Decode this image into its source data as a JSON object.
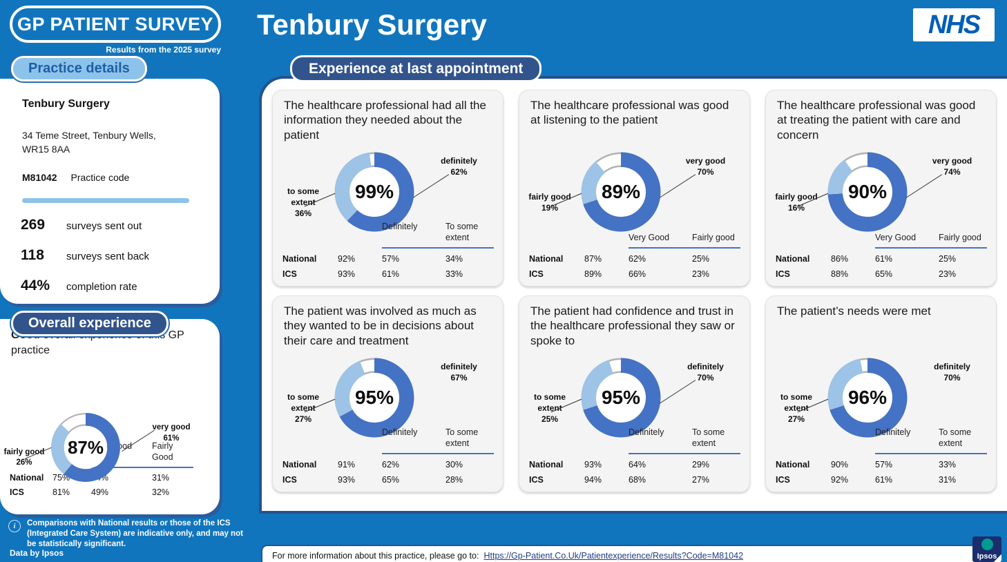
{
  "header": {
    "logo": "GP PATIENT SURVEY",
    "survey_note": "Results from the 2025 survey",
    "practice_title": "Tenbury Surgery",
    "nhs": "NHS",
    "section_pill": "Experience at last appointment"
  },
  "practice_details": {
    "pill": "Practice details",
    "name": "Tenbury Surgery",
    "address": "34 Teme Street, Tenbury Wells,\nWR15 8AA",
    "code": "M81042",
    "code_label": "Practice code",
    "stats": [
      {
        "value": "269",
        "label": "surveys sent out"
      },
      {
        "value": "118",
        "label": "surveys sent back"
      },
      {
        "value": "44%",
        "label": "completion rate"
      }
    ]
  },
  "overall": {
    "pill": "Overall experience",
    "heading_bold": "Good",
    "heading_rest": " overall experience of this GP practice"
  },
  "footer": {
    "note": "Comparisons with National results or those of the ICS (Integrated Care System) are indicative only, and may not be statistically significant.",
    "data_by": "Data by Ipsos",
    "info_text": "For more information about this practice, please go to:",
    "link": "Https://Gp-Patient.Co.Uk/Patientexperience/Results?Code=M81042",
    "ipsos": "Ipsos"
  },
  "colors": {
    "page_blue": "#1175BE",
    "navy": "#32548C",
    "panel_border_navy": "#24528E",
    "donut_dark": "#4472C4",
    "donut_light": "#9DC3E6",
    "donut_remainder_outline": "#B3B3B3",
    "table_line": "#4472C4",
    "nhs_blue": "#005EB8",
    "pill_light_bg": "#8DC3EA",
    "pill_light_text": "#1D5FA6"
  },
  "chart_data": [
    {
      "id": "overall-experience",
      "type": "donut",
      "title": "Good overall experience of this GP practice",
      "percent": 87,
      "percent_display": "87%",
      "segments": [
        {
          "label": "very good",
          "value": 61,
          "display": "61%"
        },
        {
          "label": "fairly good",
          "value": 26,
          "display": "26%"
        }
      ],
      "callout_lines": {
        "left": true,
        "right": true
      },
      "comparison": {
        "columns": [
          "Very Good",
          "Fairly Good"
        ],
        "rows": [
          {
            "label": "National",
            "overall": "75%",
            "values": [
              "44%",
              "31%"
            ]
          },
          {
            "label": "ICS",
            "overall": "81%",
            "values": [
              "49%",
              "32%"
            ]
          }
        ]
      }
    },
    {
      "id": "information-needed",
      "type": "donut",
      "title": "The healthcare professional had all the information they needed about the patient",
      "percent": 99,
      "percent_display": "99%",
      "segments": [
        {
          "label": "definitely",
          "value": 62,
          "display": "62%"
        },
        {
          "label": "to some extent",
          "value": 36,
          "display": "36%"
        }
      ],
      "callout_lines": {
        "left": true,
        "right": true
      },
      "comparison": {
        "columns": [
          "Definitely",
          "To some extent"
        ],
        "rows": [
          {
            "label": "National",
            "overall": "92%",
            "values": [
              "57%",
              "34%"
            ]
          },
          {
            "label": "ICS",
            "overall": "93%",
            "values": [
              "61%",
              "33%"
            ]
          }
        ]
      }
    },
    {
      "id": "good-at-listening",
      "type": "donut",
      "title": "The healthcare professional was good at listening to the patient",
      "percent": 89,
      "percent_display": "89%",
      "segments": [
        {
          "label": "very good",
          "value": 70,
          "display": "70%"
        },
        {
          "label": "fairly good",
          "value": 19,
          "display": "19%"
        }
      ],
      "callout_lines": {
        "left": true,
        "right": true
      },
      "comparison": {
        "columns": [
          "Very Good",
          "Fairly good"
        ],
        "rows": [
          {
            "label": "National",
            "overall": "87%",
            "values": [
              "62%",
              "25%"
            ]
          },
          {
            "label": "ICS",
            "overall": "89%",
            "values": [
              "66%",
              "23%"
            ]
          }
        ]
      }
    },
    {
      "id": "care-and-concern",
      "type": "donut",
      "title": "The healthcare professional was good at treating the patient with care and concern",
      "percent": 90,
      "percent_display": "90%",
      "segments": [
        {
          "label": "very good",
          "value": 74,
          "display": "74%"
        },
        {
          "label": "fairly good",
          "value": 16,
          "display": "16%"
        }
      ],
      "callout_lines": {
        "left": true,
        "right": true
      },
      "comparison": {
        "columns": [
          "Very Good",
          "Fairly good"
        ],
        "rows": [
          {
            "label": "National",
            "overall": "86%",
            "values": [
              "61%",
              "25%"
            ]
          },
          {
            "label": "ICS",
            "overall": "88%",
            "values": [
              "65%",
              "23%"
            ]
          }
        ]
      }
    },
    {
      "id": "involved-in-decisions",
      "type": "donut",
      "title": "The patient was involved as much as they wanted to be in decisions about their care and treatment",
      "percent": 95,
      "percent_display": "95%",
      "segments": [
        {
          "label": "definitely",
          "value": 67,
          "display": "67%"
        },
        {
          "label": "to some extent",
          "value": 27,
          "display": "27%"
        }
      ],
      "callout_lines": {
        "left": true,
        "right": false
      },
      "comparison": {
        "columns": [
          "Definitely",
          "To some extent"
        ],
        "rows": [
          {
            "label": "National",
            "overall": "91%",
            "values": [
              "62%",
              "30%"
            ]
          },
          {
            "label": "ICS",
            "overall": "93%",
            "values": [
              "65%",
              "28%"
            ]
          }
        ]
      }
    },
    {
      "id": "confidence-and-trust",
      "type": "donut",
      "title": "The patient had confidence and trust in the healthcare professional they saw or spoke to",
      "percent": 95,
      "percent_display": "95%",
      "segments": [
        {
          "label": "definitely",
          "value": 70,
          "display": "70%"
        },
        {
          "label": "to some extent",
          "value": 25,
          "display": "25%"
        }
      ],
      "callout_lines": {
        "left": true,
        "right": true
      },
      "comparison": {
        "columns": [
          "Definitely",
          "To some extent"
        ],
        "rows": [
          {
            "label": "National",
            "overall": "93%",
            "values": [
              "64%",
              "29%"
            ]
          },
          {
            "label": "ICS",
            "overall": "94%",
            "values": [
              "68%",
              "27%"
            ]
          }
        ]
      }
    },
    {
      "id": "needs-were-met",
      "type": "donut",
      "title": "The patient’s needs were met",
      "percent": 96,
      "percent_display": "96%",
      "segments": [
        {
          "label": "definitely",
          "value": 70,
          "display": "70%"
        },
        {
          "label": "to some extent",
          "value": 27,
          "display": "27%"
        }
      ],
      "callout_lines": {
        "left": true,
        "right": false
      },
      "comparison": {
        "columns": [
          "Definitely",
          "To some extent"
        ],
        "rows": [
          {
            "label": "National",
            "overall": "90%",
            "values": [
              "57%",
              "33%"
            ]
          },
          {
            "label": "ICS",
            "overall": "92%",
            "values": [
              "61%",
              "31%"
            ]
          }
        ]
      }
    }
  ]
}
